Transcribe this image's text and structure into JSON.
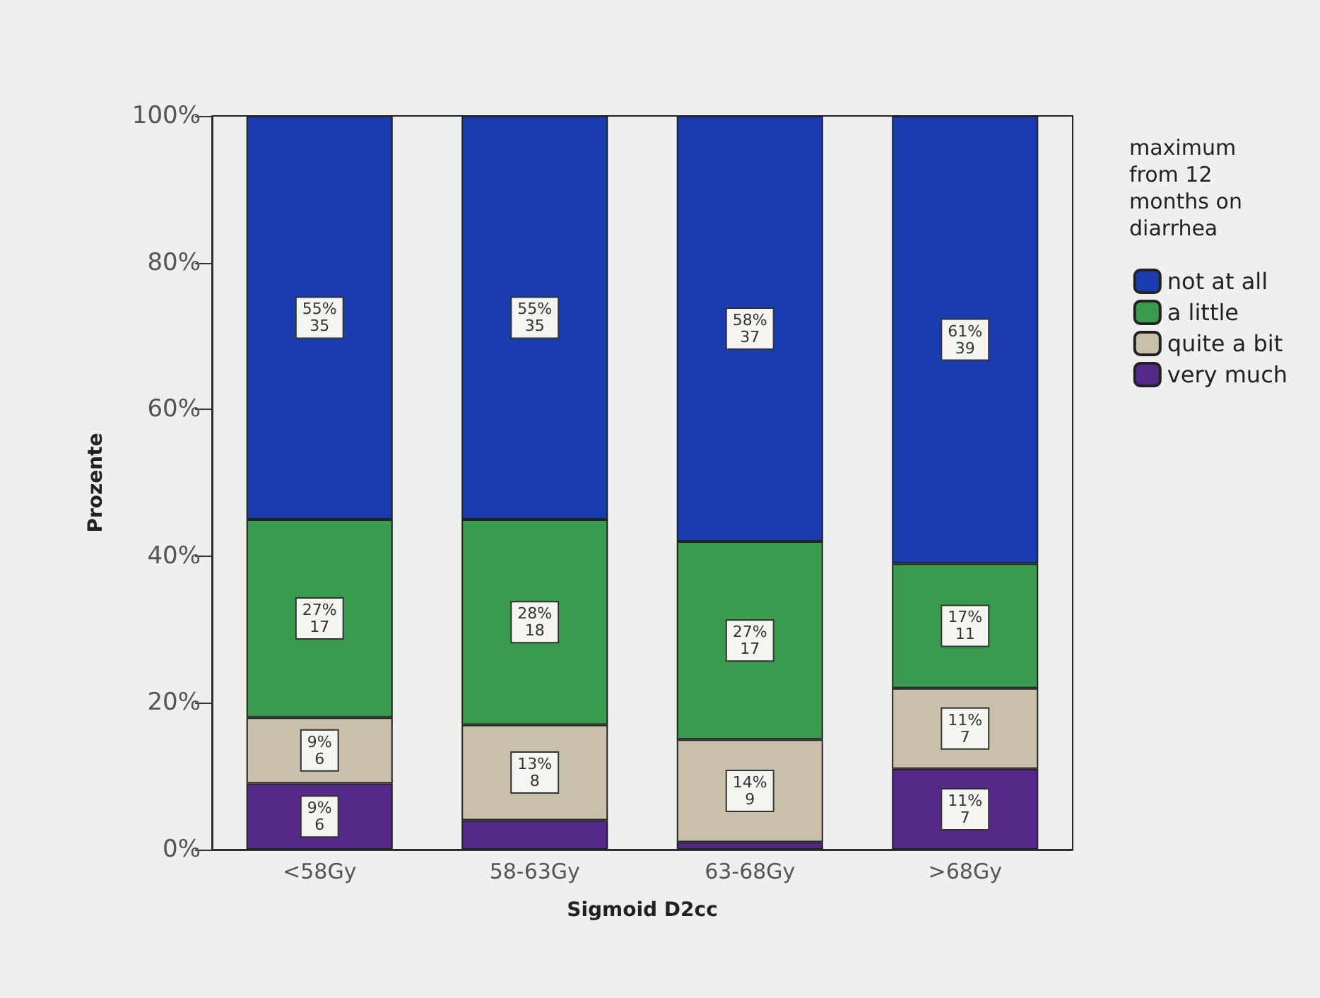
{
  "chart_data": {
    "type": "bar",
    "stacked": true,
    "xlabel": "Sigmoid D2cc",
    "ylabel": "Prozente",
    "legend_title": "maximum from 12 months on diarrhea",
    "legend": "right",
    "categories": [
      "<58Gy",
      "58-63Gy",
      "63-68Gy",
      ">68Gy"
    ],
    "series": [
      {
        "name": "very much",
        "color": "#55288a",
        "values": [
          9,
          4,
          1,
          11
        ],
        "value_labels": [
          "9%\n6",
          null,
          null,
          "11%\n7"
        ]
      },
      {
        "name": "quite a bit",
        "color": "#c8c0aa",
        "values": [
          9,
          13,
          14,
          11
        ],
        "value_labels": [
          "9%\n6",
          "13%\n8",
          "14%\n9",
          "11%\n7"
        ]
      },
      {
        "name": "a little",
        "color": "#3a9a4e",
        "values": [
          27,
          28,
          27,
          17
        ],
        "value_labels": [
          "27%\n17",
          "28%\n18",
          "27%\n17",
          "17%\n11"
        ]
      },
      {
        "name": "not at all",
        "color": "#1a3cb0",
        "values": [
          55,
          55,
          58,
          61
        ],
        "value_labels": [
          "55%\n35",
          "55%\n35",
          "58%\n37",
          "61%\n39"
        ]
      }
    ],
    "ylim": [
      0,
      100
    ],
    "yticks": [
      {
        "value": 0,
        "label": "0%"
      },
      {
        "value": 20,
        "label": "20%"
      },
      {
        "value": 40,
        "label": "40%"
      },
      {
        "value": 60,
        "label": "60%"
      },
      {
        "value": 80,
        "label": "80%"
      },
      {
        "value": 100,
        "label": "100%"
      }
    ],
    "grid": false
  }
}
